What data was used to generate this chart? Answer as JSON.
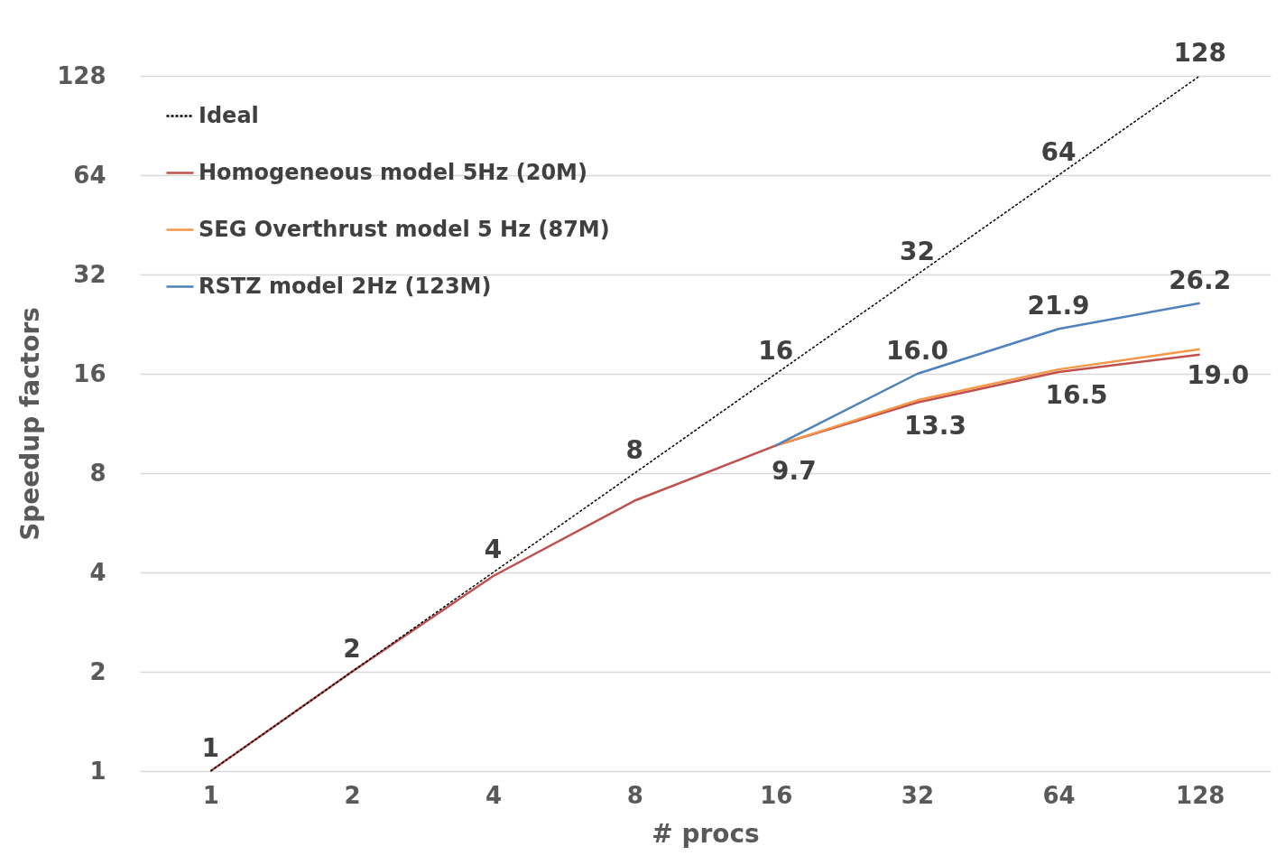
{
  "chart_data": {
    "type": "line",
    "xlabel": "# procs",
    "ylabel": "Speedup factors",
    "categories": [
      "1",
      "2",
      "4",
      "8",
      "16",
      "32",
      "64",
      "128"
    ],
    "series": [
      {
        "name": "Ideal",
        "color": "#000000",
        "line_style": "dotted",
        "values": [
          1,
          2,
          4,
          8,
          16,
          32,
          64,
          128
        ],
        "value_labels": [
          "1",
          "2",
          "4",
          "8",
          "16",
          "32",
          "64",
          "128"
        ]
      },
      {
        "name": "Homogeneous model 5Hz (20M)",
        "color": "#c0504d",
        "values": [
          1,
          2,
          3.9,
          6.6,
          9.7,
          13.1,
          16.2,
          18.3
        ]
      },
      {
        "name": "SEG Overthrust model 5 Hz (87M)",
        "color": "#f79646",
        "values": [
          null,
          null,
          null,
          null,
          9.7,
          13.3,
          16.5,
          19.0
        ],
        "value_labels": [
          null,
          null,
          null,
          null,
          "9.7",
          "13.3",
          "16.5",
          "19.0"
        ]
      },
      {
        "name": "RSTZ model 2Hz (123M)",
        "color": "#4f81bd",
        "values": [
          null,
          null,
          null,
          null,
          9.7,
          16.0,
          21.9,
          26.2
        ],
        "value_labels": [
          null,
          null,
          null,
          null,
          null,
          "16.0",
          "21.9",
          "26.2"
        ]
      }
    ],
    "log": true,
    "ylim": [
      1,
      128
    ],
    "yticks": [
      1,
      2,
      4,
      8,
      16,
      32,
      64,
      128
    ],
    "grid": "y",
    "legend": "top left",
    "marker": "none"
  }
}
